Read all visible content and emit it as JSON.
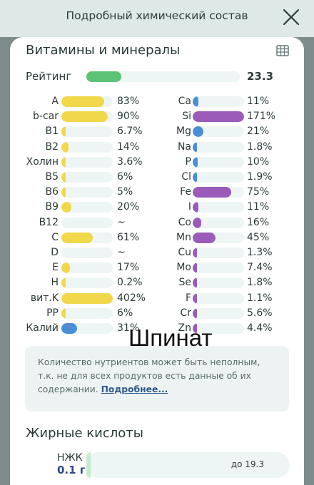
{
  "header": {
    "title": "Подробный химический состав"
  },
  "vitamins": {
    "title": "Витамины и минералы",
    "rating": {
      "label": "Рейтинг",
      "value": "23.3",
      "fill": 0.23
    },
    "left": [
      {
        "name": "A",
        "value": "83%",
        "pct": 83
      },
      {
        "name": "b-car",
        "value": "90%",
        "pct": 90
      },
      {
        "name": "B1",
        "value": "6.7%",
        "pct": 6.7
      },
      {
        "name": "B2",
        "value": "14%",
        "pct": 14
      },
      {
        "name": "Холин",
        "value": "3.6%",
        "pct": 3.6
      },
      {
        "name": "B5",
        "value": "6%",
        "pct": 6
      },
      {
        "name": "B6",
        "value": "5%",
        "pct": 5
      },
      {
        "name": "B9",
        "value": "20%",
        "pct": 20
      },
      {
        "name": "B12",
        "value": "~",
        "pct": 0
      },
      {
        "name": "C",
        "value": "61%",
        "pct": 61
      },
      {
        "name": "D",
        "value": "~",
        "pct": 0
      },
      {
        "name": "E",
        "value": "17%",
        "pct": 17
      },
      {
        "name": "H",
        "value": "0.2%",
        "pct": 0.2
      },
      {
        "name": "вит.K",
        "value": "402%",
        "pct": 402
      },
      {
        "name": "PP",
        "value": "6%",
        "pct": 6
      },
      {
        "name": "Калий",
        "value": "31%",
        "pct": 31
      }
    ],
    "right": [
      {
        "name": "Ca",
        "value": "11%",
        "pct": 11
      },
      {
        "name": "Si",
        "value": "171%",
        "pct": 171
      },
      {
        "name": "Mg",
        "value": "21%",
        "pct": 21
      },
      {
        "name": "Na",
        "value": "1.8%",
        "pct": 1.8
      },
      {
        "name": "P",
        "value": "10%",
        "pct": 10
      },
      {
        "name": "Cl",
        "value": "1.9%",
        "pct": 1.9
      },
      {
        "name": "Fe",
        "value": "75%",
        "pct": 75
      },
      {
        "name": "I",
        "value": "11%",
        "pct": 11
      },
      {
        "name": "Co",
        "value": "16%",
        "pct": 16
      },
      {
        "name": "Mn",
        "value": "45%",
        "pct": 45
      },
      {
        "name": "Cu",
        "value": "1.3%",
        "pct": 1.3
      },
      {
        "name": "Mo",
        "value": "7.4%",
        "pct": 7.4
      },
      {
        "name": "Se",
        "value": "1.8%",
        "pct": 1.8
      },
      {
        "name": "F",
        "value": "1.1%",
        "pct": 1.1
      },
      {
        "name": "Cr",
        "value": "5.6%",
        "pct": 5.6
      },
      {
        "name": "Zn",
        "value": "4.4%",
        "pct": 4.4
      }
    ]
  },
  "note": {
    "text": "Количество нутриентов может быть неполным, т.к. не для всех продуктов есть данные об их содержании.",
    "link": "Подробнее..."
  },
  "overlay_text": "Шпинат",
  "fatty_acids": {
    "title": "Жирные кислоты",
    "label": "НЖК",
    "value": "0.1 г",
    "limit": "до 19.3",
    "fill": 0.005
  },
  "colors": {
    "vitamin": "#f0d84a",
    "mineral": "#9a5cb8",
    "potassium": "#4a8fd6",
    "calcium": "#4a8fd6",
    "rating": "#5cc275"
  }
}
